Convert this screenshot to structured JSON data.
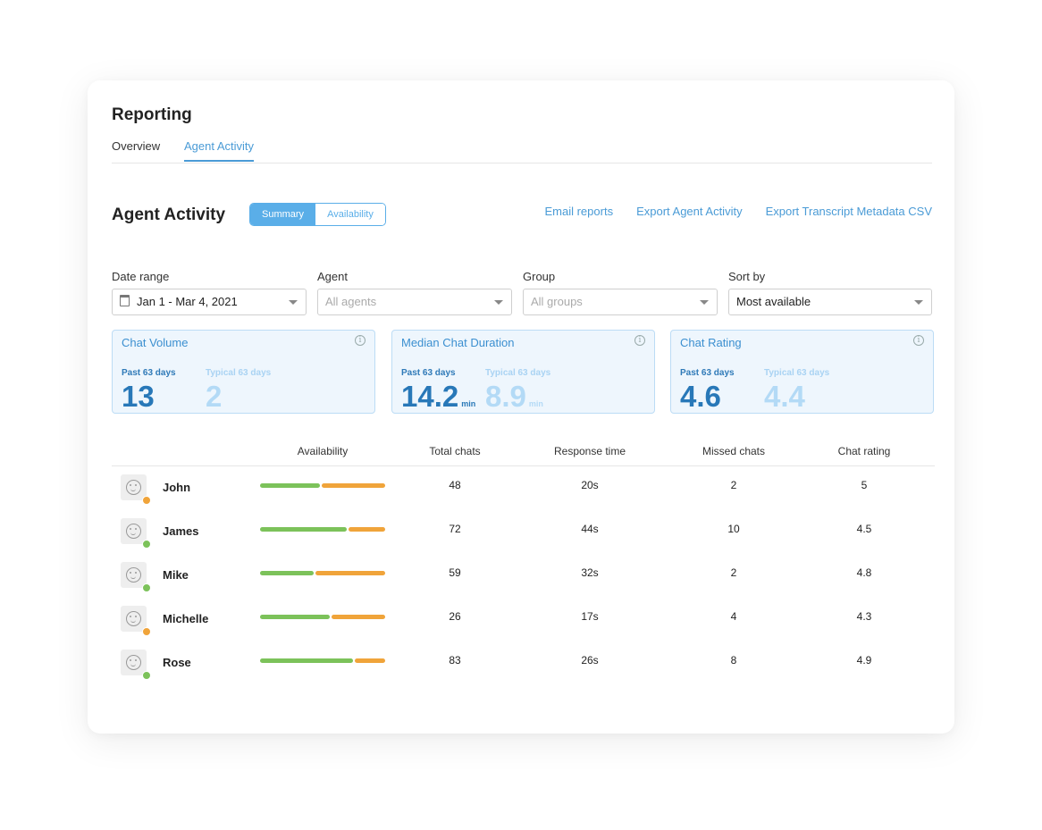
{
  "header": {
    "title": "Reporting"
  },
  "tabs": [
    {
      "label": "Overview",
      "active": false
    },
    {
      "label": "Agent Activity",
      "active": true
    }
  ],
  "section": {
    "title": "Agent Activity",
    "toggle": {
      "options": [
        "Summary",
        "Availability"
      ],
      "selected": "Summary"
    },
    "actions": [
      "Email reports",
      "Export Agent Activity",
      "Export Transcript Metadata CSV"
    ]
  },
  "filters": {
    "date_range": {
      "label": "Date range",
      "value": "Jan 1 - Mar 4, 2021"
    },
    "agent": {
      "label": "Agent",
      "placeholder": "All agents"
    },
    "group": {
      "label": "Group",
      "placeholder": "All groups"
    },
    "sort_by": {
      "label": "Sort by",
      "value": "Most available"
    }
  },
  "metrics": [
    {
      "title": "Chat Volume",
      "past_label": "Past 63 days",
      "past_value": "13",
      "past_unit": "",
      "typical_label": "Typical 63 days",
      "typical_value": "2",
      "typical_unit": ""
    },
    {
      "title": "Median Chat Duration",
      "past_label": "Past 63 days",
      "past_value": "14.2",
      "past_unit": "min",
      "typical_label": "Typical 63 days",
      "typical_value": "8.9",
      "typical_unit": "min"
    },
    {
      "title": "Chat Rating",
      "past_label": "Past 63 days",
      "past_value": "4.6",
      "past_unit": "",
      "typical_label": "Typical 63 days",
      "typical_value": "4.4",
      "typical_unit": ""
    }
  ],
  "table": {
    "columns": [
      "Availability",
      "Total chats",
      "Response time",
      "Missed chats",
      "Chat rating"
    ],
    "rows": [
      {
        "name": "John",
        "status": "away",
        "availability": 0.48,
        "total_chats": "48",
        "response_time": "20s",
        "missed_chats": "2",
        "chat_rating": "5"
      },
      {
        "name": "James",
        "status": "online",
        "availability": 0.69,
        "total_chats": "72",
        "response_time": "44s",
        "missed_chats": "10",
        "chat_rating": "4.5"
      },
      {
        "name": "Mike",
        "status": "online",
        "availability": 0.43,
        "total_chats": "59",
        "response_time": "32s",
        "missed_chats": "2",
        "chat_rating": "4.8"
      },
      {
        "name": "Michelle",
        "status": "away",
        "availability": 0.56,
        "total_chats": "26",
        "response_time": "17s",
        "missed_chats": "4",
        "chat_rating": "4.3"
      },
      {
        "name": "Rose",
        "status": "online",
        "availability": 0.74,
        "total_chats": "83",
        "response_time": "26s",
        "missed_chats": "8",
        "chat_rating": "4.9"
      }
    ]
  },
  "colors": {
    "accent": "#4a9bd6",
    "available": "#7cc25a",
    "away": "#f0a43a",
    "status_online": "#7cc25a",
    "status_away": "#f0a43a"
  },
  "icons": {
    "calendar": "calendar-icon",
    "info": "info-icon",
    "avatar": "smiley-avatar-icon",
    "caret": "chevron-down-icon"
  }
}
